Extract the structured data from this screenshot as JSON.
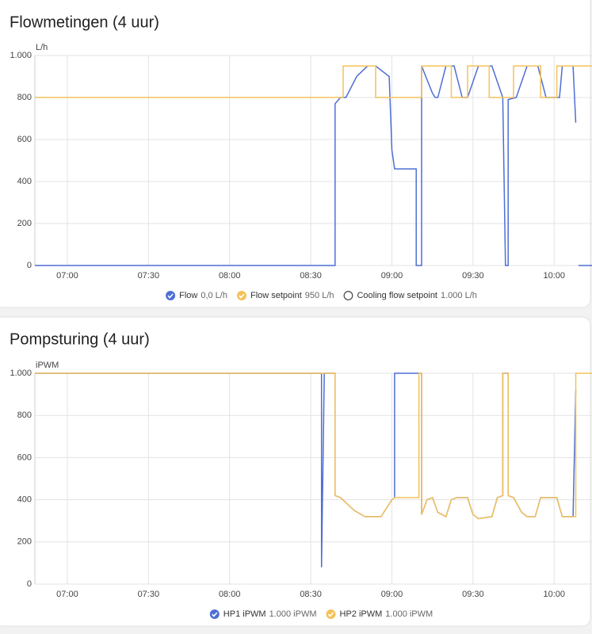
{
  "chart_data": [
    {
      "type": "line",
      "title": "Flowmetingen (4 uur)",
      "y_label": "L/h",
      "xlim": [
        "06:48",
        "10:14"
      ],
      "xticks": [
        "07:00",
        "07:30",
        "08:00",
        "08:30",
        "09:00",
        "09:30",
        "10:00"
      ],
      "ylim": [
        0,
        1000
      ],
      "yticks": [
        0,
        200,
        400,
        600,
        800,
        {
          "value": 1000,
          "label": "1.000"
        }
      ],
      "grid": true,
      "series": [
        {
          "name": "Flow",
          "color": "#4e6fd4",
          "legend_value": "0,0 L/h",
          "visible": true,
          "x": [
            "06:48",
            "08:39",
            "08:39",
            "08:41",
            "08:43",
            "08:47",
            "08:51",
            "08:54",
            "08:59",
            "09:00",
            "09:01",
            "09:09",
            "09:09",
            "09:11",
            "09:11",
            "09:15",
            "09:16",
            "09:17",
            "09:20",
            "09:23",
            "09:26",
            "09:28",
            "09:32",
            "09:37",
            "09:41",
            "09:42",
            "09:43",
            "09:43",
            "09:46",
            "09:50",
            "09:54",
            "09:57",
            "10:02",
            "10:03",
            "10:07",
            "10:08",
            null,
            "10:09",
            "10:14"
          ],
          "values": [
            0,
            0,
            770,
            800,
            800,
            900,
            950,
            950,
            900,
            550,
            460,
            460,
            0,
            0,
            950,
            820,
            800,
            800,
            950,
            950,
            800,
            800,
            950,
            950,
            800,
            0,
            0,
            790,
            800,
            950,
            950,
            800,
            800,
            950,
            950,
            680,
            null,
            0,
            0
          ]
        },
        {
          "name": "Flow setpoint",
          "color": "#f4c25b",
          "legend_value": "950 L/h",
          "visible": true,
          "x": [
            "06:48",
            "08:42",
            "08:42",
            "08:54",
            "08:54",
            "09:11",
            "09:11",
            "09:22",
            "09:22",
            "09:28",
            "09:28",
            "09:36",
            "09:36",
            "09:45",
            "09:45",
            "09:55",
            "09:55",
            "10:01",
            "10:01",
            "10:14"
          ],
          "values": [
            800,
            800,
            950,
            950,
            800,
            800,
            950,
            950,
            800,
            800,
            950,
            950,
            800,
            800,
            950,
            950,
            800,
            800,
            950,
            950
          ]
        },
        {
          "name": "Cooling flow setpoint",
          "color": "#555555",
          "legend_value": "1.000 L/h",
          "visible": false
        }
      ]
    },
    {
      "type": "line",
      "title": "Pompsturing (4 uur)",
      "y_label": "iPWM",
      "xlim": [
        "06:48",
        "10:14"
      ],
      "xticks": [
        "07:00",
        "07:30",
        "08:00",
        "08:30",
        "09:00",
        "09:30",
        "10:00"
      ],
      "ylim": [
        0,
        1000
      ],
      "yticks": [
        0,
        200,
        400,
        600,
        800,
        {
          "value": 1000,
          "label": "1.000"
        }
      ],
      "grid": true,
      "series": [
        {
          "name": "HP1 iPWM",
          "color": "#4e6fd4",
          "legend_value": "1.000 iPWM",
          "visible": true,
          "x": [
            "06:48",
            "08:34",
            "08:34",
            "08:35",
            "08:39",
            "08:39",
            "08:41",
            "08:46",
            "08:50",
            "08:56",
            "09:00",
            "09:01",
            "09:01",
            "09:09",
            "09:11",
            "09:11",
            "09:13",
            "09:15",
            "09:17",
            "09:20",
            "09:22",
            "09:24",
            "09:28",
            "09:30",
            "09:32",
            "09:37",
            "09:39",
            "09:41",
            "09:41",
            "09:43",
            "09:43",
            "09:45",
            "09:48",
            "09:50",
            "09:53",
            "09:55",
            "10:01",
            "10:03",
            "10:07",
            "10:08"
          ],
          "values": [
            1000,
            1000,
            80,
            1000,
            1000,
            420,
            410,
            350,
            320,
            320,
            400,
            410,
            1000,
            1000,
            1000,
            330,
            400,
            410,
            340,
            320,
            400,
            410,
            410,
            330,
            310,
            320,
            410,
            420,
            1000,
            1000,
            420,
            410,
            340,
            320,
            320,
            410,
            410,
            320,
            320,
            920
          ]
        },
        {
          "name": "HP2 iPWM",
          "color": "#f4c25b",
          "legend_value": "1.000 iPWM",
          "visible": true,
          "x": [
            "06:48",
            "08:39",
            "08:39",
            "08:41",
            "08:46",
            "08:50",
            "08:56",
            "09:00",
            "09:01",
            "09:09",
            "09:09",
            "09:10",
            "09:10",
            "09:11",
            "09:11",
            "09:13",
            "09:15",
            "09:17",
            "09:20",
            "09:22",
            "09:24",
            "09:28",
            "09:30",
            "09:32",
            "09:37",
            "09:39",
            "09:41",
            "09:41",
            "09:43",
            "09:43",
            "09:45",
            "09:48",
            "09:50",
            "09:53",
            "09:55",
            "10:01",
            "10:03",
            "10:07",
            "10:08",
            "10:08",
            "10:14"
          ],
          "values": [
            1000,
            1000,
            420,
            410,
            350,
            320,
            320,
            400,
            410,
            410,
            410,
            410,
            1000,
            1000,
            330,
            400,
            410,
            340,
            320,
            400,
            410,
            410,
            330,
            310,
            320,
            410,
            420,
            1000,
            1000,
            420,
            410,
            340,
            320,
            320,
            410,
            410,
            320,
            320,
            320,
            1000,
            1000
          ]
        }
      ]
    }
  ]
}
